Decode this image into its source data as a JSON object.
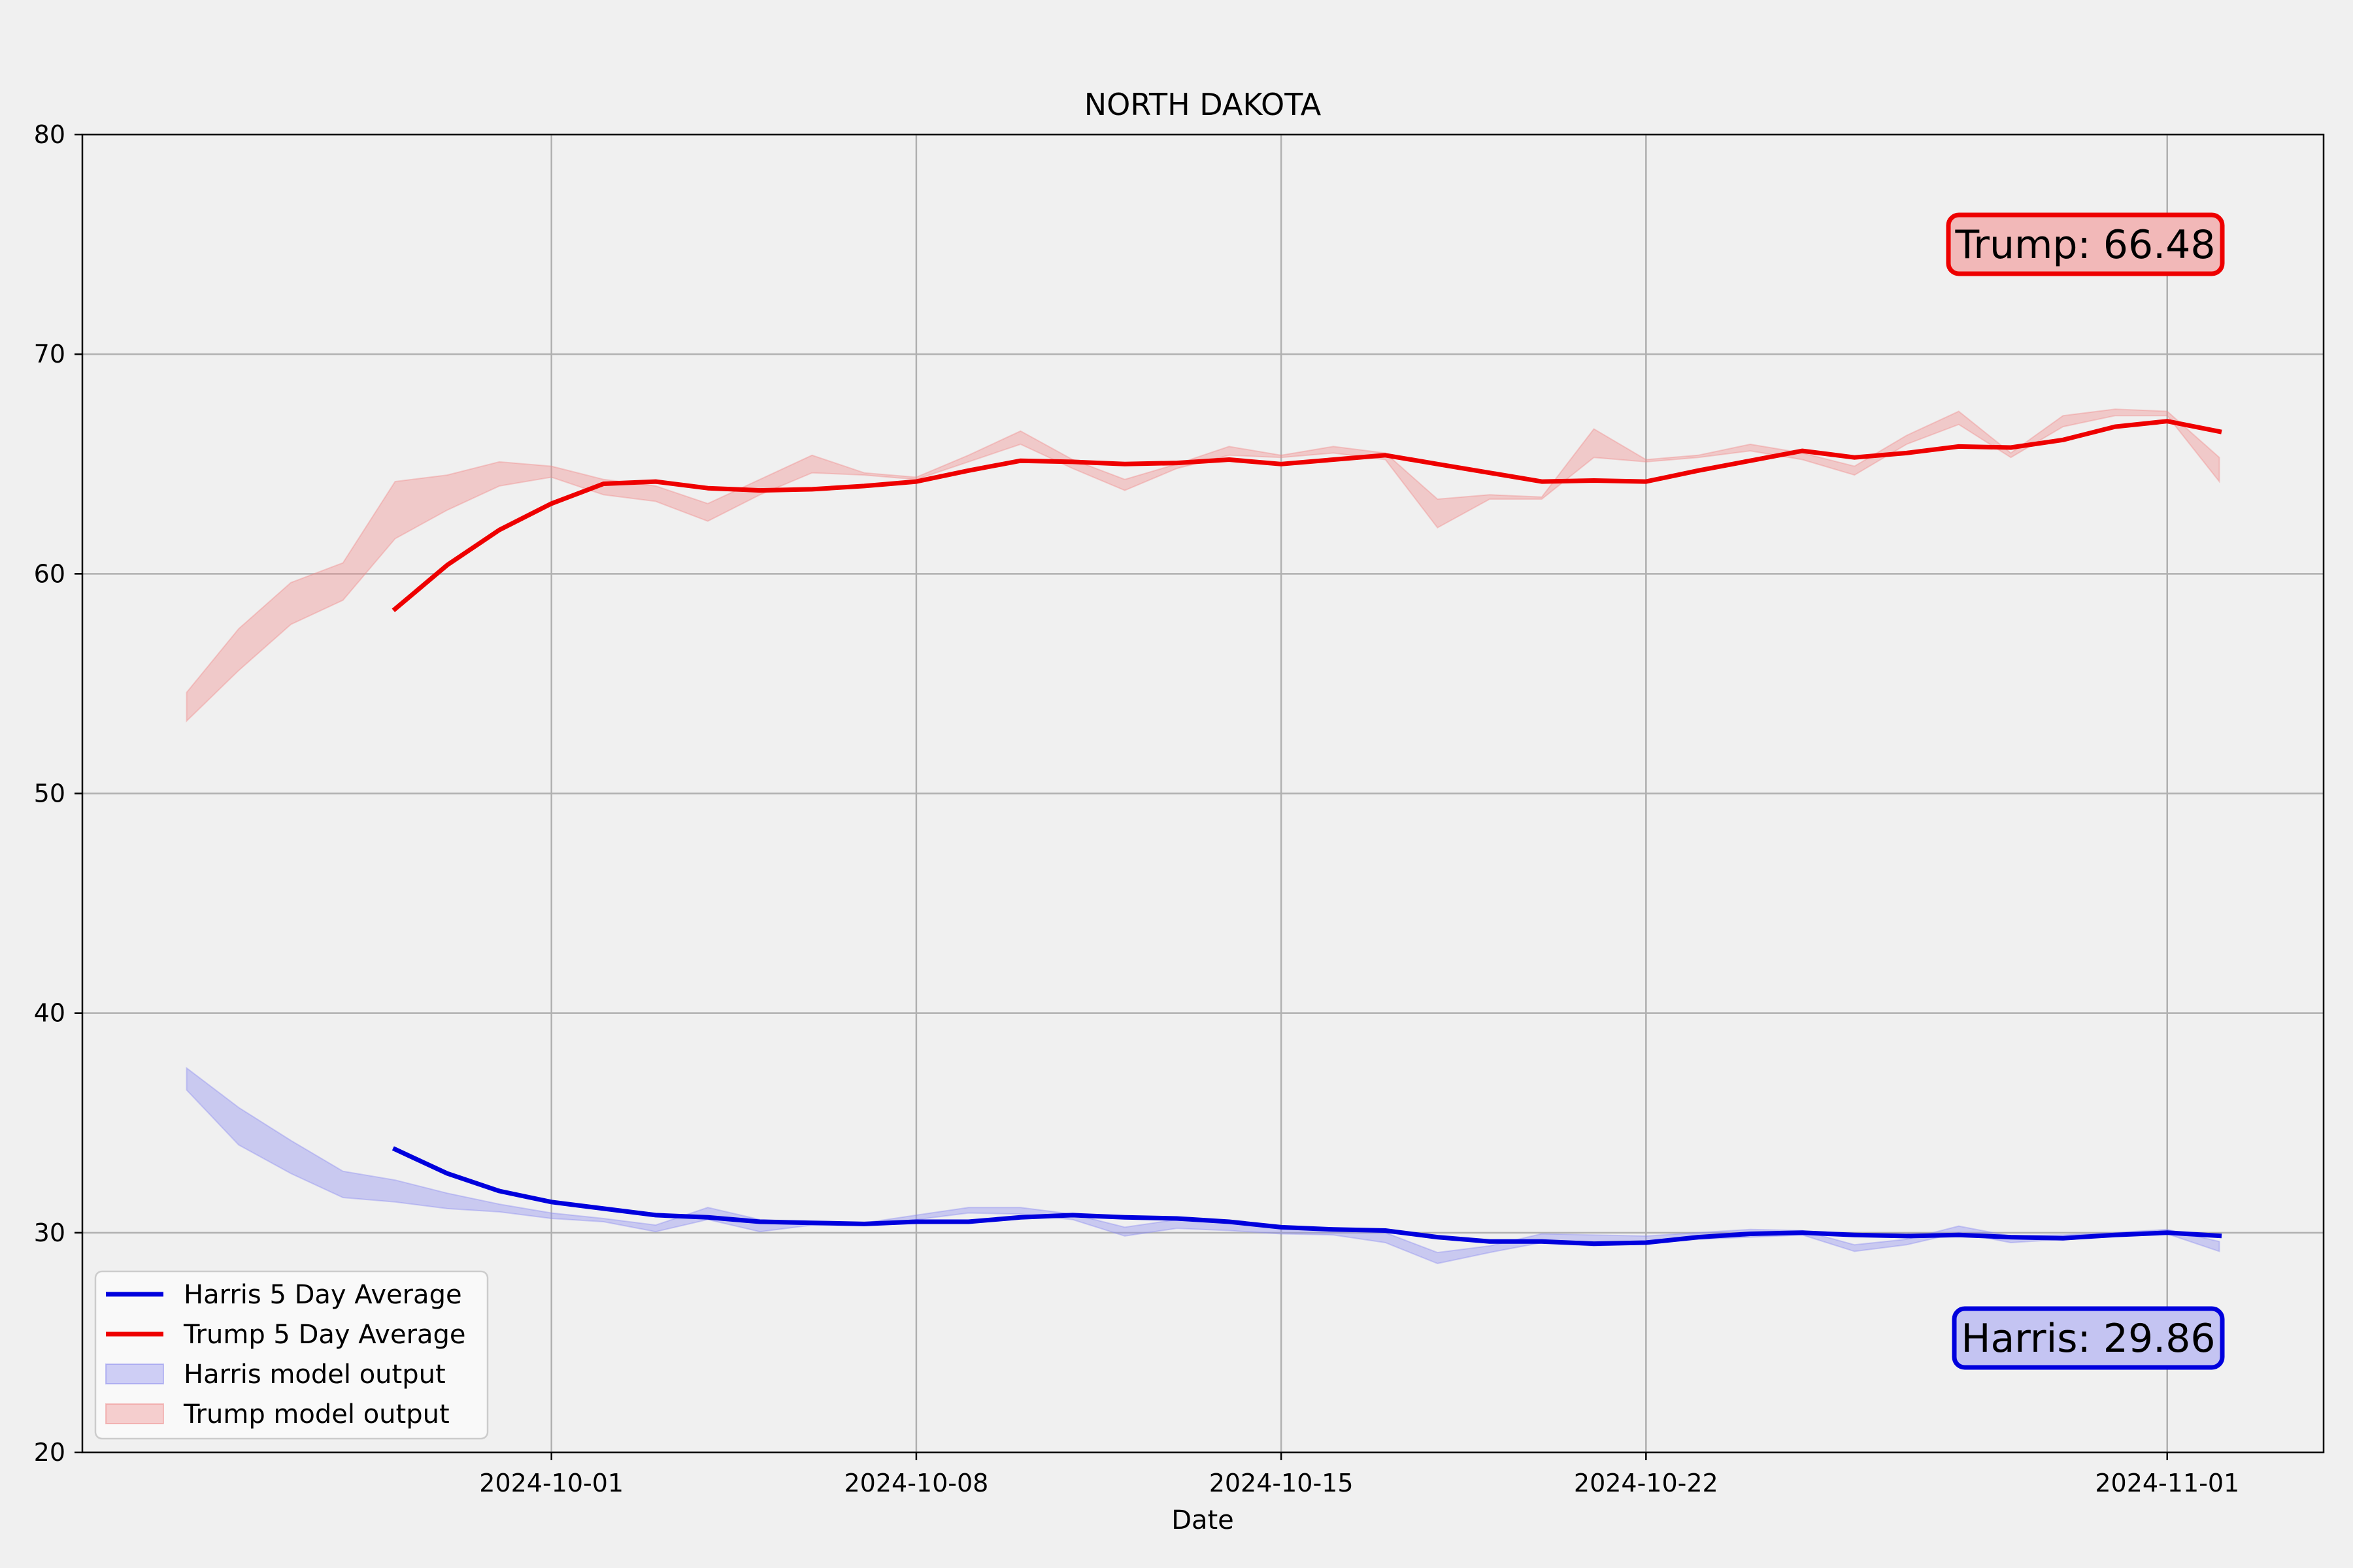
{
  "chart_data": {
    "type": "line",
    "title": "NORTH DAKOTA",
    "xlabel": "Date",
    "ylabel": "",
    "ylim": [
      20,
      80
    ],
    "xlim": [
      "2024-09-22",
      "2024-11-04"
    ],
    "grid": true,
    "legend_position": "lower-left",
    "x_ticks": [
      "2024-10-01",
      "2024-10-08",
      "2024-10-15",
      "2024-10-22",
      "2024-11-01"
    ],
    "y_ticks": [
      20,
      30,
      40,
      50,
      60,
      70,
      80
    ],
    "x": [
      "2024-09-24",
      "2024-09-25",
      "2024-09-26",
      "2024-09-27",
      "2024-09-28",
      "2024-09-29",
      "2024-09-30",
      "2024-10-01",
      "2024-10-02",
      "2024-10-03",
      "2024-10-04",
      "2024-10-05",
      "2024-10-06",
      "2024-10-07",
      "2024-10-08",
      "2024-10-09",
      "2024-10-10",
      "2024-10-11",
      "2024-10-12",
      "2024-10-13",
      "2024-10-14",
      "2024-10-15",
      "2024-10-16",
      "2024-10-17",
      "2024-10-18",
      "2024-10-19",
      "2024-10-20",
      "2024-10-21",
      "2024-10-22",
      "2024-10-23",
      "2024-10-24",
      "2024-10-25",
      "2024-10-26",
      "2024-10-27",
      "2024-10-28",
      "2024-10-29",
      "2024-10-30",
      "2024-10-31",
      "2024-11-01",
      "2024-11-02"
    ],
    "series": [
      {
        "name": "Harris 5 Day Average",
        "color": "#0000dd",
        "kind": "line",
        "values": [
          null,
          null,
          null,
          null,
          33.8,
          32.7,
          31.9,
          31.4,
          31.1,
          30.8,
          30.7,
          30.5,
          30.45,
          30.4,
          30.5,
          30.5,
          30.7,
          30.8,
          30.7,
          30.65,
          30.5,
          30.25,
          30.15,
          30.1,
          29.8,
          29.6,
          29.6,
          29.5,
          29.55,
          29.8,
          29.95,
          30.0,
          29.9,
          29.85,
          29.9,
          29.8,
          29.75,
          29.9,
          30.0,
          29.86
        ]
      },
      {
        "name": "Trump 5 Day Average",
        "color": "#ee0000",
        "kind": "line",
        "values": [
          null,
          null,
          null,
          null,
          58.4,
          60.4,
          62.0,
          63.2,
          64.1,
          64.2,
          63.9,
          63.8,
          63.85,
          64.0,
          64.2,
          64.7,
          65.15,
          65.1,
          65.0,
          65.05,
          65.2,
          65.0,
          65.2,
          65.4,
          65.0,
          64.6,
          64.2,
          64.25,
          64.2,
          64.7,
          65.15,
          65.6,
          65.3,
          65.5,
          65.8,
          65.75,
          66.1,
          66.7,
          66.95,
          66.48
        ]
      },
      {
        "name": "Harris model output",
        "color": "#8888ee",
        "kind": "band",
        "lower": [
          36.5,
          34.0,
          32.7,
          31.6,
          31.4,
          31.1,
          30.95,
          30.65,
          30.5,
          30.05,
          30.6,
          30.05,
          30.35,
          30.35,
          30.6,
          30.9,
          30.85,
          30.6,
          29.85,
          30.2,
          30.1,
          29.95,
          29.9,
          29.55,
          28.6,
          29.1,
          29.55,
          29.4,
          29.5,
          29.7,
          29.8,
          29.9,
          29.15,
          29.45,
          30.0,
          29.55,
          29.7,
          29.9,
          29.95,
          29.15
        ],
        "upper": [
          37.5,
          35.7,
          34.2,
          32.8,
          32.4,
          31.8,
          31.3,
          30.9,
          30.65,
          30.35,
          31.15,
          30.6,
          30.5,
          30.45,
          30.8,
          31.15,
          31.15,
          30.85,
          30.25,
          30.6,
          30.5,
          30.3,
          30.2,
          30.0,
          29.1,
          29.4,
          29.95,
          29.9,
          29.85,
          30.0,
          30.15,
          30.1,
          29.45,
          29.7,
          30.3,
          29.85,
          29.9,
          30.0,
          30.15,
          29.6
        ]
      },
      {
        "name": "Trump model output",
        "color": "#ee8888",
        "kind": "band",
        "lower": [
          53.3,
          55.6,
          57.7,
          58.8,
          61.6,
          62.9,
          64.0,
          64.4,
          63.6,
          63.3,
          62.4,
          63.6,
          64.6,
          64.5,
          64.3,
          65.1,
          65.9,
          64.8,
          63.8,
          64.8,
          65.4,
          65.3,
          65.5,
          65.2,
          62.1,
          63.4,
          63.4,
          65.3,
          65.1,
          65.3,
          65.6,
          65.2,
          64.5,
          65.9,
          66.8,
          65.3,
          66.7,
          67.2,
          67.2,
          64.2
        ],
        "upper": [
          54.6,
          57.5,
          59.6,
          60.5,
          64.2,
          64.5,
          65.1,
          64.9,
          64.3,
          64.0,
          63.2,
          64.3,
          65.4,
          64.6,
          64.4,
          65.4,
          66.5,
          65.2,
          64.3,
          65.0,
          65.8,
          65.4,
          65.8,
          65.5,
          63.4,
          63.6,
          63.5,
          66.6,
          65.2,
          65.4,
          65.9,
          65.5,
          64.9,
          66.3,
          67.4,
          65.5,
          67.2,
          67.5,
          67.4,
          65.3
        ]
      }
    ],
    "annotations": [
      {
        "text": "Trump: 66.48",
        "color": "#ee0000",
        "fill": "#f2b8b8",
        "position": "upper-right"
      },
      {
        "text": "Harris: 29.86",
        "color": "#0000dd",
        "fill": "#c4c4f2",
        "position": "lower-right"
      }
    ]
  }
}
